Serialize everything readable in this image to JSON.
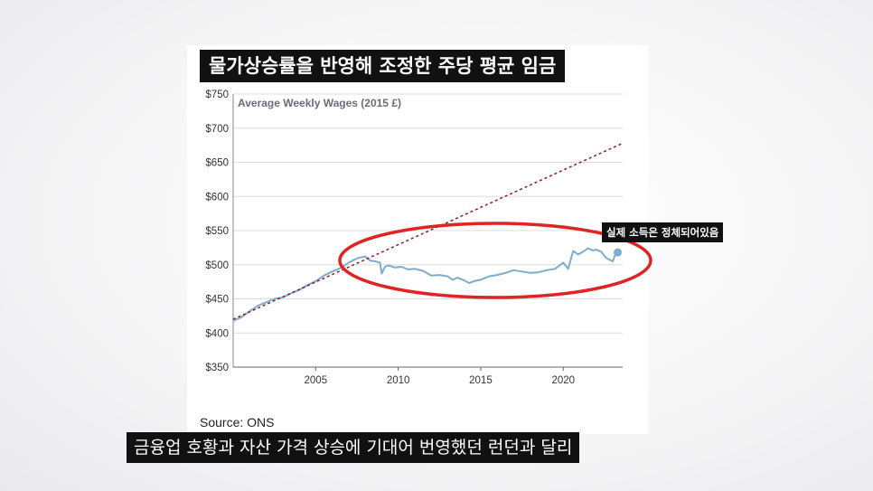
{
  "overlay": {
    "title": "물가상승률을 반영해 조정한 주당 평균 임금",
    "annotation": "실제 소득은 정체되어있음",
    "subtitle": "금융업 호황과 자산 가격 상승에 기대어 번영했던 런던과 달리"
  },
  "source": "Source: ONS",
  "colors": {
    "series": "#7eaccd",
    "trend": "#8a1c2b",
    "ellipse": "#e02424",
    "grid": "#dcdcdc",
    "text": "#333333"
  },
  "chart_data": {
    "type": "line",
    "title": "Average Weekly Wages (2015 £)",
    "xlim": [
      2000,
      2023.6
    ],
    "ylim": [
      350,
      750
    ],
    "xticks": [
      2005,
      2010,
      2015,
      2020
    ],
    "xtick_labels": [
      "2005",
      "2010",
      "2015",
      "2020"
    ],
    "yticks": [
      350,
      400,
      450,
      500,
      550,
      600,
      650,
      700,
      750
    ],
    "ytick_labels": [
      "$350",
      "$400",
      "$450",
      "$500",
      "$550",
      "$600",
      "$650",
      "$700",
      "$750"
    ],
    "grid": "horizontal",
    "series": [
      {
        "style": "solid",
        "x": [
          2000.0,
          2000.5,
          2001.0,
          2001.5,
          2002.0,
          2002.5,
          2003.0,
          2003.5,
          2004.0,
          2004.5,
          2005.0,
          2005.5,
          2006.0,
          2006.5,
          2007.0,
          2007.3,
          2007.6,
          2008.0,
          2008.3,
          2008.6,
          2008.9,
          2009.0,
          2009.2,
          2009.4,
          2009.8,
          2010.2,
          2010.6,
          2011.0,
          2011.5,
          2012.0,
          2012.5,
          2013.0,
          2013.3,
          2013.6,
          2014.0,
          2014.3,
          2014.6,
          2015.0,
          2015.5,
          2016.0,
          2016.5,
          2017.0,
          2017.5,
          2018.0,
          2018.5,
          2019.0,
          2019.5,
          2020.0,
          2020.3,
          2020.6,
          2020.9,
          2021.2,
          2021.5,
          2021.8,
          2022.0,
          2022.3,
          2022.6,
          2023.0,
          2023.2
        ],
        "y": [
          418,
          423,
          432,
          440,
          445,
          450,
          452,
          458,
          463,
          470,
          476,
          484,
          490,
          495,
          503,
          507,
          510,
          512,
          506,
          505,
          503,
          487,
          497,
          499,
          496,
          497,
          493,
          494,
          491,
          484,
          485,
          483,
          478,
          481,
          477,
          473,
          476,
          478,
          483,
          485,
          488,
          492,
          490,
          488,
          489,
          492,
          494,
          503,
          494,
          520,
          515,
          519,
          524,
          521,
          522,
          519,
          510,
          505,
          518
        ]
      },
      {
        "style": "dashed",
        "x": [
          2000.0,
          2023.6
        ],
        "y": [
          420,
          678
        ]
      }
    ],
    "end_marker": {
      "x": 2023.3,
      "y": 518
    }
  }
}
